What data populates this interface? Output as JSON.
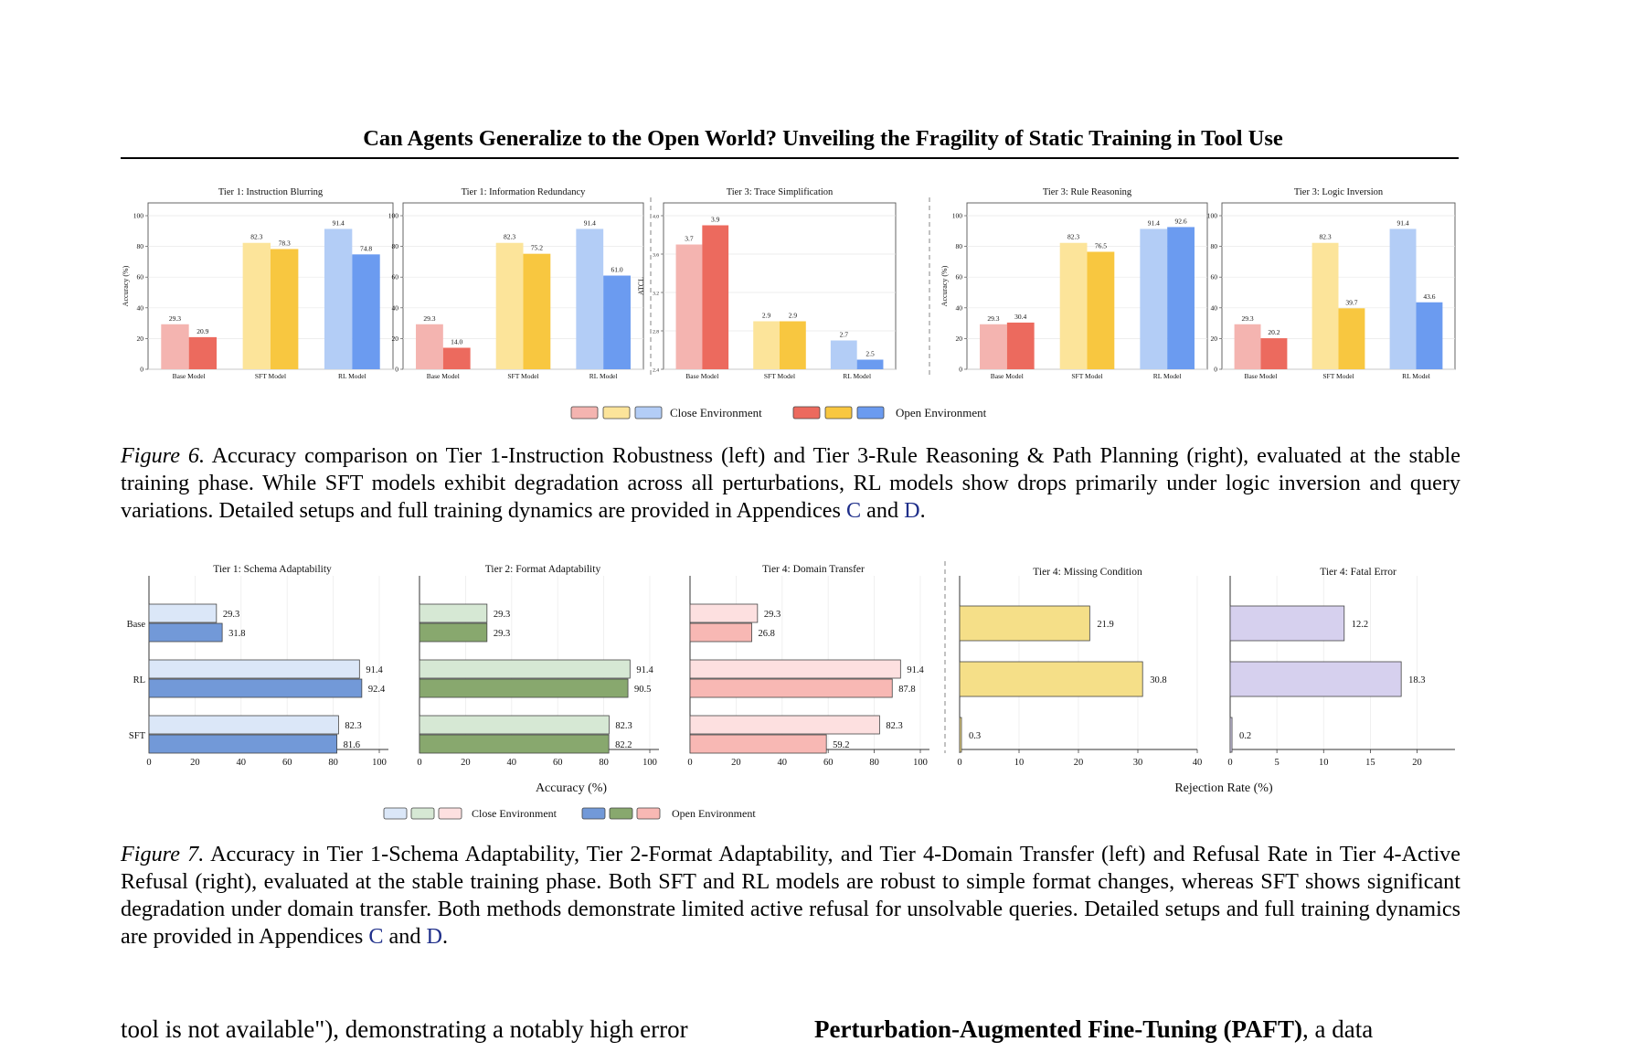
{
  "header": {
    "title": "Can Agents Generalize to the Open World? Unveiling the Fragility of Static Training in Tool Use"
  },
  "figure6": {
    "legend": {
      "close_label": "Close Environment",
      "open_label": "Open Environment",
      "close_colors": [
        "#f4b4b0",
        "#fce49a",
        "#b3cdf6"
      ],
      "open_colors": [
        "#ec6a5e",
        "#f8c740",
        "#6b9bf0"
      ]
    },
    "caption": {
      "label": "Figure 6.",
      "text1": " Accuracy comparison on Tier 1-Instruction Robustness (left) and Tier 3-Rule Reasoning & Path Planning (right), evaluated at the stable training phase. While SFT models exhibit degradation across all perturbations, RL models show drops primarily under logic inversion and query variations. Detailed setups and full training dynamics are provided in Appendices ",
      "ref1": "C",
      "and": " and ",
      "ref2": "D",
      "end": "."
    }
  },
  "figure7": {
    "xlabel_left": "Accuracy (%)",
    "xlabel_right": "Rejection Rate (%)",
    "legend": {
      "close_label": "Close Environment",
      "open_label": "Open Environment",
      "close_colors": [
        "#dbe7f8",
        "#d6e8d4",
        "#fde0e0"
      ],
      "open_colors": [
        "#7299d8",
        "#88a86e",
        "#f8b8b4"
      ]
    },
    "caption": {
      "label": "Figure 7.",
      "text1": " Accuracy in Tier 1-Schema Adaptability, Tier 2-Format Adaptability, and Tier 4-Domain Transfer (left) and Refusal Rate in Tier 4-Active Refusal (right), evaluated at the stable training phase. Both SFT and RL models are robust to simple format changes, whereas SFT shows significant degradation under domain transfer. Both methods demonstrate limited active refusal for unsolvable queries. Detailed setups and full training dynamics are provided in Appendices ",
      "ref1": "C",
      "and": " and ",
      "ref2": "D",
      "end": "."
    }
  },
  "body": {
    "left_line": "tool is not available\"), demonstrating a notably high error",
    "right_bold": "Perturbation-Augmented Fine-Tuning (PAFT)",
    "right_rest": ", a data"
  },
  "chart_data": [
    {
      "type": "bar",
      "title": "Tier 1: Instruction Blurring",
      "ylabel": "Accuracy (%)",
      "categories": [
        "Base Model",
        "SFT Model",
        "RL Model"
      ],
      "series": [
        {
          "values": [
            29.3,
            82.3,
            91.4
          ]
        },
        {
          "values": [
            20.9,
            78.3,
            74.8
          ]
        }
      ],
      "ylim": [
        0,
        100
      ],
      "yticks": [
        "0",
        "20",
        "40",
        "60",
        "80",
        "100"
      ],
      "colors_close": [
        "#f4b4b0",
        "#fce49a",
        "#b3cdf6"
      ],
      "colors_open": [
        "#ec6a5e",
        "#f8c740",
        "#6b9bf0"
      ],
      "grid": true
    },
    {
      "type": "bar",
      "title": "Tier 1: Information Redundancy",
      "ylabel": "",
      "categories": [
        "Base Model",
        "SFT Model",
        "RL Model"
      ],
      "series": [
        {
          "values": [
            29.3,
            82.3,
            91.4
          ]
        },
        {
          "values": [
            14.0,
            75.2,
            61.0
          ]
        }
      ],
      "ylim": [
        0,
        100
      ],
      "yticks": [
        "0",
        "20",
        "40",
        "60",
        "80",
        "100"
      ],
      "colors_close": [
        "#f4b4b0",
        "#fce49a",
        "#b3cdf6"
      ],
      "colors_open": [
        "#ec6a5e",
        "#f8c740",
        "#6b9bf0"
      ],
      "grid": true
    },
    {
      "type": "bar",
      "title": "Tier 3: Trace Simplification",
      "ylabel": "ATCL",
      "categories": [
        "Base Model",
        "SFT Model",
        "RL Model"
      ],
      "series": [
        {
          "values": [
            3.7,
            2.9,
            2.7
          ]
        },
        {
          "values": [
            3.9,
            2.9,
            2.5
          ]
        }
      ],
      "ylim": [
        2.4,
        4.0
      ],
      "yticks": [
        "2.4",
        "2.8",
        "3.2",
        "3.6",
        "4.0"
      ],
      "colors_close": [
        "#f4b4b0",
        "#fce49a",
        "#b3cdf6"
      ],
      "colors_open": [
        "#ec6a5e",
        "#f8c740",
        "#6b9bf0"
      ],
      "grid": true
    },
    {
      "type": "bar",
      "title": "Tier 3: Rule Reasoning",
      "ylabel": "Accuracy (%)",
      "categories": [
        "Base Model",
        "SFT Model",
        "RL Model"
      ],
      "series": [
        {
          "values": [
            29.3,
            82.3,
            91.4
          ]
        },
        {
          "values": [
            30.4,
            76.5,
            92.6
          ]
        }
      ],
      "ylim": [
        0,
        100
      ],
      "yticks": [
        "0",
        "20",
        "40",
        "60",
        "80",
        "100"
      ],
      "colors_close": [
        "#f4b4b0",
        "#fce49a",
        "#b3cdf6"
      ],
      "colors_open": [
        "#ec6a5e",
        "#f8c740",
        "#6b9bf0"
      ],
      "grid": true
    },
    {
      "type": "bar",
      "title": "Tier 3: Logic Inversion",
      "ylabel": "",
      "categories": [
        "Base Model",
        "SFT Model",
        "RL Model"
      ],
      "series": [
        {
          "values": [
            29.3,
            82.3,
            91.4
          ]
        },
        {
          "values": [
            20.2,
            39.7,
            43.6
          ]
        }
      ],
      "ylim": [
        0,
        100
      ],
      "yticks": [
        "0",
        "20",
        "40",
        "60",
        "80",
        "100"
      ],
      "colors_close": [
        "#f4b4b0",
        "#fce49a",
        "#b3cdf6"
      ],
      "colors_open": [
        "#ec6a5e",
        "#f8c740",
        "#6b9bf0"
      ],
      "grid": true
    },
    {
      "type": "bar",
      "orientation": "horizontal",
      "title": "Tier 1: Schema Adaptability",
      "categories": [
        "Base",
        "RL",
        "SFT"
      ],
      "series": [
        {
          "values": [
            29.3,
            91.4,
            82.3
          ]
        },
        {
          "values": [
            31.8,
            92.4,
            81.6
          ]
        }
      ],
      "xlim": [
        0,
        100
      ],
      "xticks": [
        "0",
        "20",
        "40",
        "60",
        "80",
        "100"
      ],
      "color_close": "#dbe7f8",
      "color_open": "#7299d8",
      "grid": true
    },
    {
      "type": "bar",
      "orientation": "horizontal",
      "title": "Tier 2: Format Adaptability",
      "categories": [
        "Base",
        "RL",
        "SFT"
      ],
      "series": [
        {
          "values": [
            29.3,
            91.4,
            82.3
          ]
        },
        {
          "values": [
            29.3,
            90.5,
            82.2
          ]
        }
      ],
      "xlim": [
        0,
        100
      ],
      "xticks": [
        "0",
        "20",
        "40",
        "60",
        "80",
        "100"
      ],
      "color_close": "#d6e8d4",
      "color_open": "#88a86e",
      "grid": true
    },
    {
      "type": "bar",
      "orientation": "horizontal",
      "title": "Tier 4: Domain Transfer",
      "categories": [
        "Base",
        "RL",
        "SFT"
      ],
      "series": [
        {
          "values": [
            29.3,
            91.4,
            82.3
          ]
        },
        {
          "values": [
            26.8,
            87.8,
            59.2
          ]
        }
      ],
      "xlim": [
        0,
        100
      ],
      "xticks": [
        "0",
        "20",
        "40",
        "60",
        "80",
        "100"
      ],
      "color_close": "#fde0e0",
      "color_open": "#f8b8b4",
      "grid": true
    },
    {
      "type": "bar",
      "orientation": "horizontal",
      "title": "Tier 4: Missing Condition",
      "categories": [
        "Base",
        "RL",
        "SFT"
      ],
      "values": [
        21.9,
        30.8,
        0.3
      ],
      "xlim": [
        0,
        40
      ],
      "xticks": [
        "0",
        "10",
        "20",
        "30",
        "40"
      ],
      "color": "#f5df88",
      "grid": true
    },
    {
      "type": "bar",
      "orientation": "horizontal",
      "title": "Tier 4: Fatal Error",
      "categories": [
        "Base",
        "RL",
        "SFT"
      ],
      "values": [
        12.2,
        18.3,
        0.2
      ],
      "xlim": [
        0,
        22
      ],
      "xticks": [
        "0",
        "5",
        "10",
        "15",
        "20"
      ],
      "color": "#d6d0ee",
      "grid": true
    }
  ]
}
